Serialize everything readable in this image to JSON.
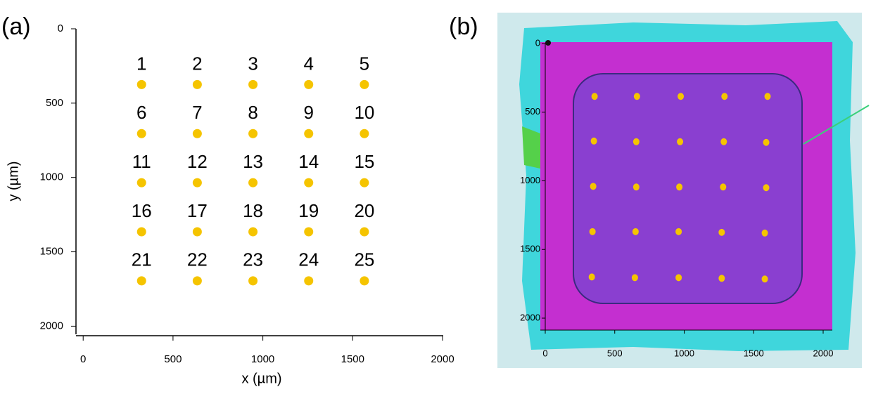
{
  "chart_data": [
    {
      "type": "scatter",
      "panel_label": "(a)",
      "x_label": "x (µm)",
      "y_label": "y (µm)",
      "xlim": [
        -40,
        2000
      ],
      "ylim": [
        2050,
        0
      ],
      "xticks": [
        0,
        500,
        1000,
        1500,
        2000
      ],
      "yticks": [
        0,
        500,
        1000,
        1500,
        2000
      ],
      "color": "#f5c400",
      "labels": [
        "1",
        "2",
        "3",
        "4",
        "5",
        "6",
        "7",
        "8",
        "9",
        "10",
        "11",
        "12",
        "13",
        "14",
        "15",
        "16",
        "17",
        "18",
        "19",
        "20",
        "21",
        "22",
        "23",
        "24",
        "25"
      ],
      "x": [
        325,
        635,
        945,
        1255,
        1565,
        325,
        635,
        945,
        1255,
        1565,
        325,
        635,
        945,
        1255,
        1565,
        325,
        635,
        945,
        1255,
        1565,
        325,
        635,
        945,
        1255,
        1565
      ],
      "y": [
        375,
        375,
        375,
        375,
        375,
        705,
        705,
        705,
        705,
        705,
        1035,
        1035,
        1035,
        1035,
        1035,
        1365,
        1365,
        1365,
        1365,
        1365,
        1695,
        1695,
        1695,
        1695,
        1695
      ]
    },
    {
      "type": "image",
      "panel_label": "(b)",
      "xlim": [
        0,
        2000
      ],
      "ylim": [
        2000,
        0
      ],
      "xticks": [
        0,
        500,
        1000,
        1500,
        2000
      ],
      "yticks": [
        0,
        500,
        1000,
        1500,
        2000
      ],
      "color": "#f5c400",
      "x": [
        355,
        660,
        975,
        1290,
        1600,
        350,
        655,
        970,
        1285,
        1590,
        345,
        655,
        965,
        1280,
        1590,
        340,
        650,
        960,
        1270,
        1580,
        335,
        645,
        960,
        1270,
        1580
      ],
      "y": [
        385,
        385,
        385,
        385,
        385,
        710,
        715,
        715,
        715,
        720,
        1040,
        1045,
        1045,
        1045,
        1050,
        1370,
        1370,
        1370,
        1375,
        1380,
        1700,
        1705,
        1705,
        1710,
        1715
      ]
    }
  ]
}
